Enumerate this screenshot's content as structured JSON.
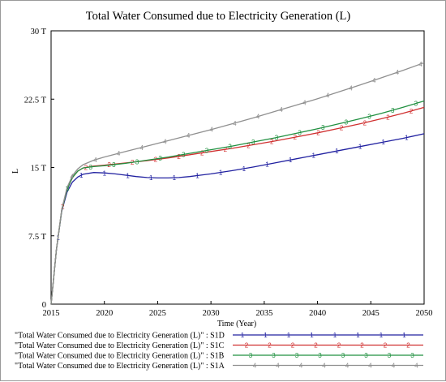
{
  "chart_data": {
    "type": "line",
    "title": "Total Water Consumed due to Electricity Generation (L)",
    "xlabel": "Time (Year)",
    "ylabel": "L",
    "xlim": [
      2015,
      2050
    ],
    "ylim": [
      0,
      30
    ],
    "x_ticks": [
      2015,
      2020,
      2025,
      2030,
      2035,
      2040,
      2045,
      2050
    ],
    "y_ticks": [
      0,
      7.5,
      15,
      22.5,
      30
    ],
    "y_tick_labels": [
      "0",
      "7.5 T",
      "15 T",
      "22.5 T",
      "30 T"
    ],
    "legend_position": "bottom",
    "series": [
      {
        "name": "\"Total Water Consumed due to Electricity Generation (L)\" : S1D",
        "marker": "1",
        "color": "#2020a0",
        "x": [
          2015,
          2015.5,
          2016,
          2016.5,
          2017,
          2017.5,
          2018,
          2019,
          2020,
          2021,
          2022,
          2023,
          2024,
          2025,
          2026,
          2027,
          2028,
          2029,
          2030,
          2032,
          2034,
          2036,
          2038,
          2040,
          2042,
          2044,
          2046,
          2048,
          2050
        ],
        "y": [
          0,
          6.0,
          10.2,
          12.3,
          13.4,
          13.95,
          14.25,
          14.45,
          14.4,
          14.3,
          14.15,
          14.0,
          13.9,
          13.85,
          13.85,
          13.9,
          14.0,
          14.15,
          14.3,
          14.65,
          15.05,
          15.5,
          15.95,
          16.4,
          16.85,
          17.3,
          17.75,
          18.2,
          18.7
        ]
      },
      {
        "name": "\"Total Water Consumed due to Electricity Generation (L)\" : S1C",
        "marker": "2",
        "color": "#d03030",
        "x": [
          2015,
          2015.5,
          2016,
          2016.5,
          2017,
          2017.5,
          2018,
          2019,
          2020,
          2022,
          2024,
          2026,
          2028,
          2030,
          2032,
          2034,
          2036,
          2038,
          2040,
          2042,
          2044,
          2046,
          2048,
          2050
        ],
        "y": [
          0,
          6.0,
          10.3,
          12.6,
          13.9,
          14.6,
          14.95,
          15.15,
          15.25,
          15.5,
          15.75,
          16.05,
          16.4,
          16.75,
          17.1,
          17.5,
          17.9,
          18.35,
          18.8,
          19.3,
          19.8,
          20.35,
          20.95,
          21.6
        ]
      },
      {
        "name": "\"Total Water Consumed due to Electricity Generation (L)\" : S1B",
        "marker": "3",
        "color": "#209040",
        "x": [
          2015,
          2015.5,
          2016,
          2016.5,
          2017,
          2017.5,
          2018,
          2019,
          2020,
          2022,
          2024,
          2026,
          2028,
          2030,
          2032,
          2034,
          2036,
          2038,
          2040,
          2042,
          2044,
          2046,
          2048,
          2050
        ],
        "y": [
          0,
          6.0,
          10.3,
          12.6,
          13.9,
          14.6,
          14.95,
          15.1,
          15.2,
          15.45,
          15.8,
          16.15,
          16.55,
          16.95,
          17.35,
          17.8,
          18.25,
          18.75,
          19.25,
          19.8,
          20.35,
          20.95,
          21.6,
          22.3
        ]
      },
      {
        "name": "\"Total Water Consumed due to Electricity Generation (L)\" : S1A",
        "marker": "4",
        "color": "#909090",
        "x": [
          2015,
          2015.5,
          2016,
          2016.5,
          2017,
          2017.5,
          2018,
          2019,
          2020,
          2022,
          2024,
          2026,
          2028,
          2030,
          2032,
          2034,
          2036,
          2038,
          2040,
          2042,
          2044,
          2046,
          2048,
          2050
        ],
        "y": [
          0,
          6.0,
          10.4,
          12.8,
          14.1,
          14.85,
          15.3,
          15.8,
          16.15,
          16.75,
          17.35,
          17.95,
          18.55,
          19.15,
          19.8,
          20.45,
          21.15,
          21.85,
          22.55,
          23.3,
          24.05,
          24.85,
          25.65,
          26.5
        ]
      }
    ]
  }
}
